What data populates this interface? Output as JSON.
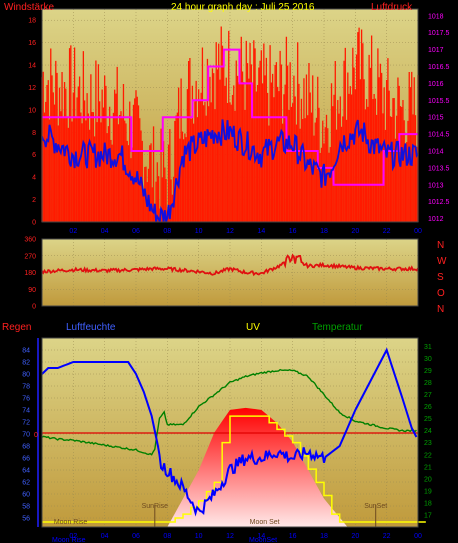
{
  "colors": {
    "plot_top": "#dcd488",
    "plot_bottom": "#c09a3c",
    "grid": "#9a8a50",
    "wind": "#ff1a00",
    "wind_avg": "#1010e0",
    "pressure": "#ff00ff",
    "direction": "#e01010",
    "humidity": "#0000ff",
    "temperature": "#008000",
    "uv": "#ffff00",
    "rain_zero": "#e00000",
    "solar_top": "#ff0000",
    "solar_bottom": "#ffe8e8",
    "sun_marker": "#6e4a20"
  },
  "chart_data": [
    {
      "type": "line",
      "title": "24 hour graph day : Juli 25 2016",
      "left_label": "Windstärke",
      "right_label": "Luftdruck",
      "x_ticks": [
        "02",
        "04",
        "06",
        "08",
        "10",
        "12",
        "14",
        "16",
        "18",
        "20",
        "22",
        "00"
      ],
      "y_left_ticks": [
        "0",
        "2",
        "4",
        "6",
        "8",
        "10",
        "12",
        "14",
        "16",
        "18"
      ],
      "y_left_range": [
        0,
        19
      ],
      "y_right_ticks": [
        "1012",
        "1012.5",
        "1013",
        "1013.5",
        "1014",
        "1014.5",
        "1015",
        "1015.5",
        "1016",
        "1016.5",
        "1017",
        "1017.5",
        "1018"
      ],
      "y_right_range": [
        1011.9,
        1018.2
      ],
      "series": [
        {
          "hours": [
            0,
            1,
            2,
            3,
            4,
            5,
            6,
            6.7,
            7.3,
            8,
            8.5,
            9,
            10,
            11,
            12,
            13,
            14,
            15,
            16,
            17,
            18,
            18.5,
            19,
            20,
            20.5,
            21,
            22,
            23,
            24
          ],
          "values": [
            8,
            7,
            6,
            6,
            6,
            6,
            4,
            2,
            0.5,
            0.5,
            3,
            6,
            7,
            8,
            8,
            7,
            6,
            7,
            7,
            5,
            4,
            5,
            7,
            8,
            8,
            7,
            6,
            6,
            6
          ]
        },
        {
          "hours": [
            0,
            1,
            2,
            3,
            4,
            5,
            6,
            7,
            8,
            9,
            10,
            11,
            12,
            13,
            14,
            15,
            16,
            17,
            18,
            19,
            20,
            21,
            22,
            23,
            24
          ],
          "values": [
            13,
            12,
            12,
            11,
            11,
            10,
            8,
            5,
            4,
            11,
            13,
            14,
            14,
            13,
            12,
            12,
            13,
            11,
            9,
            12,
            14,
            13,
            11,
            10,
            10
          ]
        },
        {
          "hours": [
            0,
            5.7,
            5.71,
            7.7,
            7.71,
            9.6,
            9.61,
            10.6,
            10.61,
            11.6,
            11.61,
            12.6,
            12.61,
            13.4,
            13.41,
            15.6,
            15.61,
            17.6,
            17.61,
            18.6,
            18.61,
            20.6,
            20.61,
            21.8,
            21.81,
            22.8,
            22.81,
            24
          ],
          "values": [
            1015,
            1015,
            1014,
            1014,
            1015,
            1015,
            1015.5,
            1015.5,
            1016.5,
            1016.5,
            1017,
            1017,
            1016,
            1016,
            1015,
            1015,
            1014,
            1014,
            1013.5,
            1013.5,
            1013,
            1013,
            1013,
            1013,
            1014,
            1014,
            1014.5,
            1014.5
          ]
        }
      ]
    },
    {
      "type": "line",
      "y_ticks": [
        "360",
        "270",
        "180",
        "90",
        "0"
      ],
      "y_range": [
        0,
        360
      ],
      "compass": [
        "N",
        "W",
        "S",
        "O",
        "N"
      ],
      "series": [
        {
          "hours": [
            0,
            2,
            4,
            6,
            7,
            8,
            10,
            11,
            12,
            13,
            14,
            15,
            16,
            17,
            18,
            20,
            22,
            24
          ],
          "values": [
            185,
            195,
            190,
            195,
            200,
            200,
            185,
            175,
            200,
            180,
            175,
            210,
            250,
            215,
            220,
            205,
            200,
            200
          ]
        }
      ]
    },
    {
      "type": "line",
      "labels": {
        "rain": "Regen",
        "humidity": "Luftfeuchte",
        "uv": "UV",
        "temperature": "Temperatur"
      },
      "x_ticks": [
        "02",
        "04",
        "06",
        "08",
        "10",
        "12",
        "14",
        "16",
        "18",
        "20",
        "22",
        "00"
      ],
      "y_left_ticks": [
        "56",
        "58",
        "60",
        "62",
        "64",
        "66",
        "68",
        "70",
        "72",
        "74",
        "76",
        "78",
        "80",
        "82",
        "84"
      ],
      "y_left_range": [
        54.5,
        86
      ],
      "y_right_ticks": [
        "17",
        "18",
        "19",
        "20",
        "21",
        "22",
        "23",
        "24",
        "25",
        "26",
        "27",
        "28",
        "29",
        "30",
        "31"
      ],
      "y_right_range": [
        16,
        31.7
      ],
      "rain_zero_label": "0",
      "events": [
        {
          "label": "SunRise",
          "hour": 7.2
        },
        {
          "label": "SunSet",
          "hour": 21.3
        },
        {
          "label": "Moon Rise",
          "hour": 0.5
        },
        {
          "label": "Moon Set",
          "hour": 13.0
        }
      ],
      "bottom_marks": [
        "Moon Rise",
        "MoonSet"
      ],
      "series": [
        {
          "name": "Luftfeuchte",
          "hours": [
            0,
            0.4,
            1,
            2,
            3,
            4,
            5,
            5.5,
            6,
            6.5,
            7,
            7.4,
            7.6,
            8,
            9,
            10,
            11,
            12,
            13,
            14,
            15,
            16,
            17,
            18,
            19,
            20,
            21,
            22,
            23,
            23.6,
            24
          ],
          "values": [
            80,
            81,
            81,
            82,
            82,
            82,
            82,
            82,
            80,
            77,
            73,
            68,
            65,
            64,
            61,
            57,
            60,
            64,
            66,
            66,
            67,
            66,
            67,
            66,
            68,
            74,
            79,
            84,
            76,
            71,
            69
          ]
        },
        {
          "name": "Temperatur",
          "hours": [
            0,
            1,
            2,
            3,
            4,
            5,
            6,
            7,
            7.2,
            7.5,
            7.8,
            8,
            9,
            10,
            11,
            12,
            13,
            14,
            15,
            16,
            17,
            18,
            19,
            20,
            21,
            22,
            23,
            24
          ],
          "values": [
            23.5,
            23.3,
            23.2,
            23,
            22.8,
            22.6,
            22.4,
            22,
            22.5,
            25,
            25.5,
            24.5,
            24.5,
            26,
            27,
            28,
            28.5,
            28.8,
            29,
            29,
            28.5,
            27,
            25.5,
            24.8,
            24.5,
            24.2,
            24,
            24
          ]
        },
        {
          "name": "UV",
          "hours": [
            0,
            6.5,
            7,
            8,
            9,
            10,
            11,
            11.5,
            12,
            13,
            14,
            15,
            16,
            17,
            18,
            18.5,
            19,
            20,
            24
          ],
          "values": [
            0,
            0,
            0,
            0,
            0.3,
            0.8,
            1.5,
            3,
            4,
            4,
            4,
            3.5,
            3,
            2,
            1,
            0.3,
            0,
            0,
            0
          ]
        },
        {
          "name": "Solar",
          "hours": [
            0,
            7,
            8,
            9,
            10,
            11,
            12,
            13,
            14,
            15,
            16,
            17,
            18,
            19,
            19.5,
            24
          ],
          "values": [
            0,
            0,
            0,
            0.15,
            0.3,
            0.5,
            0.62,
            0.63,
            0.62,
            0.55,
            0.45,
            0.3,
            0.15,
            0.05,
            0,
            0
          ]
        }
      ]
    }
  ]
}
